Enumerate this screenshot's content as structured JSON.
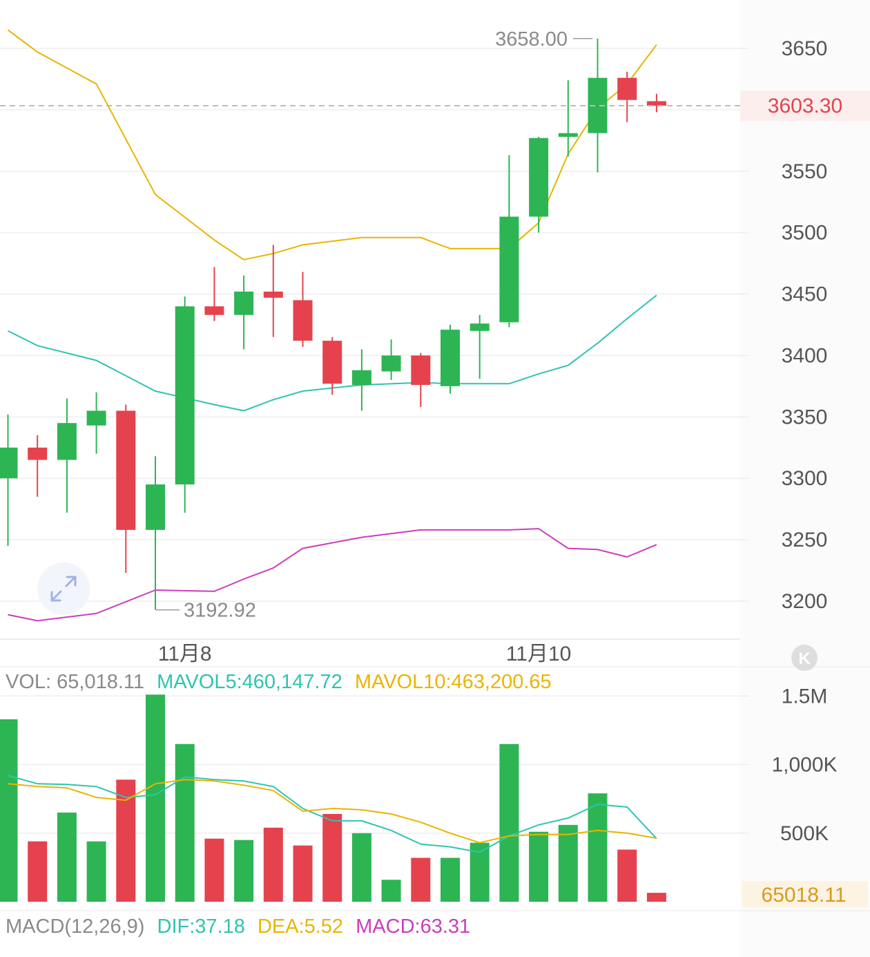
{
  "colors": {
    "up": "#2db554",
    "down": "#e5424d",
    "upper_band": "#e8b500",
    "middle_band": "#2ec4b0",
    "lower_band": "#cc3cbc",
    "mavol5": "#2ec4b0",
    "mavol10": "#e8b500",
    "last_price": "#e5424d",
    "last_volume": "#d99a1c",
    "grid": "#eeeeee",
    "label": "#555555"
  },
  "price_axis": {
    "ticks": [
      3200,
      3250,
      3300,
      3350,
      3400,
      3450,
      3500,
      3550,
      3650
    ],
    "tick_labels": [
      "3200",
      "3250",
      "3300",
      "3350",
      "3400",
      "3450",
      "3500",
      "3550",
      "3650"
    ],
    "last_price": 3603.3,
    "last_price_label": "3603.30"
  },
  "time_axis": {
    "labels": [
      "11月8",
      "11月10"
    ],
    "label_candle_index": [
      6,
      18
    ]
  },
  "annotations": {
    "high_label": "3658.00",
    "high_value": 3658.0,
    "low_label": "3192.92",
    "low_value": 3192.92
  },
  "volume_legend": {
    "vol": "VOL: 65,018.11",
    "mavol5": "MAVOL5:460,147.72",
    "mavol10": "MAVOL10:463,200.65"
  },
  "volume_axis": {
    "tick_labels": [
      "1.5M",
      "1,000K",
      "500K"
    ],
    "ticks": [
      1500000,
      1000000,
      500000
    ],
    "last_label": "65018.11"
  },
  "macd_legend": {
    "title": "MACD(12,26,9)",
    "dif": "DIF:37.18",
    "dea": "DEA:5.52",
    "macd": "MACD:63.31"
  },
  "icons": {
    "expand": "expand-icon",
    "kline": "k-logo-icon"
  },
  "logo_letter": "K",
  "chart_data": {
    "type": "candlestick",
    "candles": [
      {
        "open": 3300,
        "close": 3325,
        "high": 3352,
        "low": 3245
      },
      {
        "open": 3325,
        "close": 3315,
        "high": 3335,
        "low": 3285
      },
      {
        "open": 3315,
        "close": 3345,
        "high": 3365,
        "low": 3272
      },
      {
        "open": 3343,
        "close": 3355,
        "high": 3370,
        "low": 3320
      },
      {
        "open": 3355,
        "close": 3258,
        "high": 3360,
        "low": 3223
      },
      {
        "open": 3258,
        "close": 3295,
        "high": 3318,
        "low": 3192.92
      },
      {
        "open": 3295,
        "close": 3440,
        "high": 3448,
        "low": 3272
      },
      {
        "open": 3440,
        "close": 3433,
        "high": 3472,
        "low": 3428
      },
      {
        "open": 3433,
        "close": 3452,
        "high": 3465,
        "low": 3405
      },
      {
        "open": 3452,
        "close": 3447,
        "high": 3490,
        "low": 3415
      },
      {
        "open": 3445,
        "close": 3412,
        "high": 3468,
        "low": 3407
      },
      {
        "open": 3412,
        "close": 3377,
        "high": 3415,
        "low": 3368
      },
      {
        "open": 3376,
        "close": 3388,
        "high": 3405,
        "low": 3355
      },
      {
        "open": 3387,
        "close": 3400,
        "high": 3413,
        "low": 3380
      },
      {
        "open": 3400,
        "close": 3376,
        "high": 3402,
        "low": 3358
      },
      {
        "open": 3375,
        "close": 3421,
        "high": 3425,
        "low": 3369
      },
      {
        "open": 3420,
        "close": 3426,
        "high": 3433,
        "low": 3381
      },
      {
        "open": 3427,
        "close": 3513,
        "high": 3563,
        "low": 3423
      },
      {
        "open": 3513,
        "close": 3577,
        "high": 3578,
        "low": 3500
      },
      {
        "open": 3578,
        "close": 3581,
        "high": 3624,
        "low": 3562
      },
      {
        "open": 3581,
        "close": 3626,
        "high": 3658.0,
        "low": 3549
      },
      {
        "open": 3626,
        "close": 3608,
        "high": 3631,
        "low": 3590
      },
      {
        "open": 3607,
        "close": 3603.3,
        "high": 3613,
        "low": 3598
      }
    ],
    "bollinger": {
      "upper": [
        3665,
        3647,
        null,
        3621,
        null,
        3531,
        null,
        3494,
        3478,
        3483,
        3490,
        null,
        3496,
        null,
        3496,
        3487,
        null,
        3487,
        3508,
        3564,
        3601,
        3621,
        3653
      ],
      "middle": [
        3420,
        3408,
        null,
        3396,
        null,
        3371,
        null,
        3360,
        3355,
        3364,
        3371,
        null,
        3376,
        null,
        3378,
        3377,
        null,
        3377,
        3385,
        3392,
        3410,
        3430,
        3449
      ],
      "lower": [
        3189,
        3184,
        null,
        3190,
        null,
        3209,
        null,
        3208,
        3218,
        3227,
        3243,
        null,
        3252,
        null,
        3258,
        3258,
        null,
        3258,
        3259,
        3243,
        3242,
        3236,
        3246
      ]
    },
    "volume": [
      1330000,
      440000,
      650000,
      440000,
      890000,
      1510000,
      1150000,
      460000,
      450000,
      540000,
      410000,
      640000,
      500000,
      160000,
      320000,
      320000,
      430000,
      1150000,
      510000,
      560000,
      790000,
      380000,
      65018.11
    ],
    "mavol5": [
      920000,
      860000,
      855000,
      840000,
      760000,
      780000,
      910000,
      890000,
      880000,
      840000,
      680000,
      590000,
      590000,
      520000,
      420000,
      400000,
      360000,
      480000,
      560000,
      610000,
      710000,
      690000,
      460147.72
    ],
    "mavol10": [
      860000,
      840000,
      830000,
      760000,
      740000,
      860000,
      890000,
      880000,
      850000,
      810000,
      660000,
      680000,
      670000,
      640000,
      580000,
      500000,
      430000,
      480000,
      490000,
      490000,
      520000,
      500000,
      463200.65
    ]
  }
}
